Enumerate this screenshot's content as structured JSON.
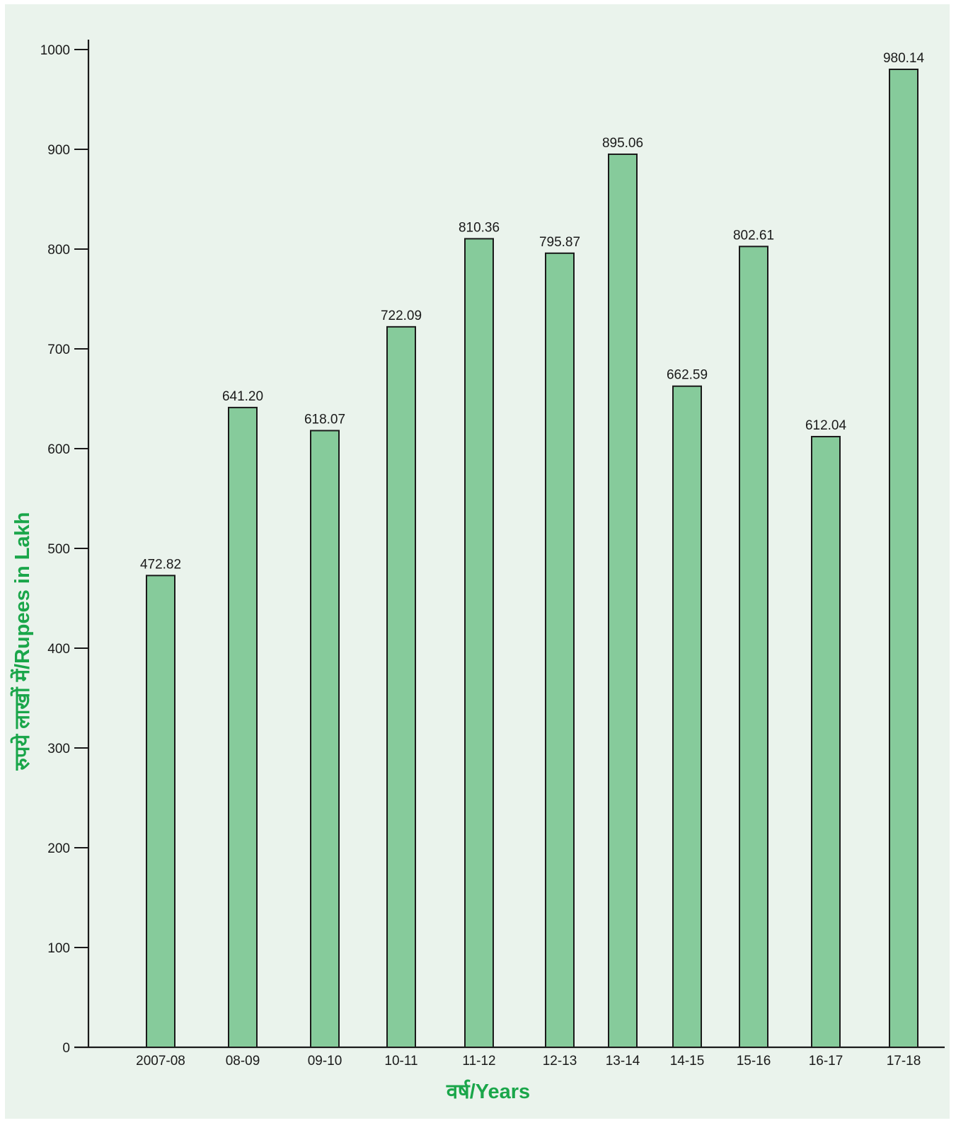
{
  "chart_data": {
    "type": "bar",
    "title": "",
    "xlabel": "वर्ष/Years",
    "ylabel": "रुपये लाखों में/Rupees in Lakh",
    "categories": [
      "2007-08",
      "08-09",
      "09-10",
      "10-11",
      "11-12",
      "12-13",
      "13-14",
      "14-15",
      "15-16",
      "16-17",
      "17-18"
    ],
    "values": [
      472.82,
      641.2,
      618.07,
      722.09,
      810.36,
      795.87,
      895.06,
      662.59,
      802.61,
      612.04,
      980.14
    ],
    "value_labels": [
      "472.82",
      "641.20",
      "618.07",
      "722.09",
      "810.36",
      "795.87",
      "895.06",
      "662.59",
      "802.61",
      "612.04",
      "980.14"
    ],
    "yticks": [
      0,
      100,
      200,
      300,
      400,
      500,
      600,
      700,
      800,
      900,
      1000
    ],
    "ylim": [
      0,
      1000
    ],
    "grid": false,
    "legend": "none",
    "bar_color": "#86cb9b",
    "bar_edge_color": "#1a1a1a",
    "axis_title_color": "#1aa64a",
    "background_color": "#eaf3ec"
  }
}
